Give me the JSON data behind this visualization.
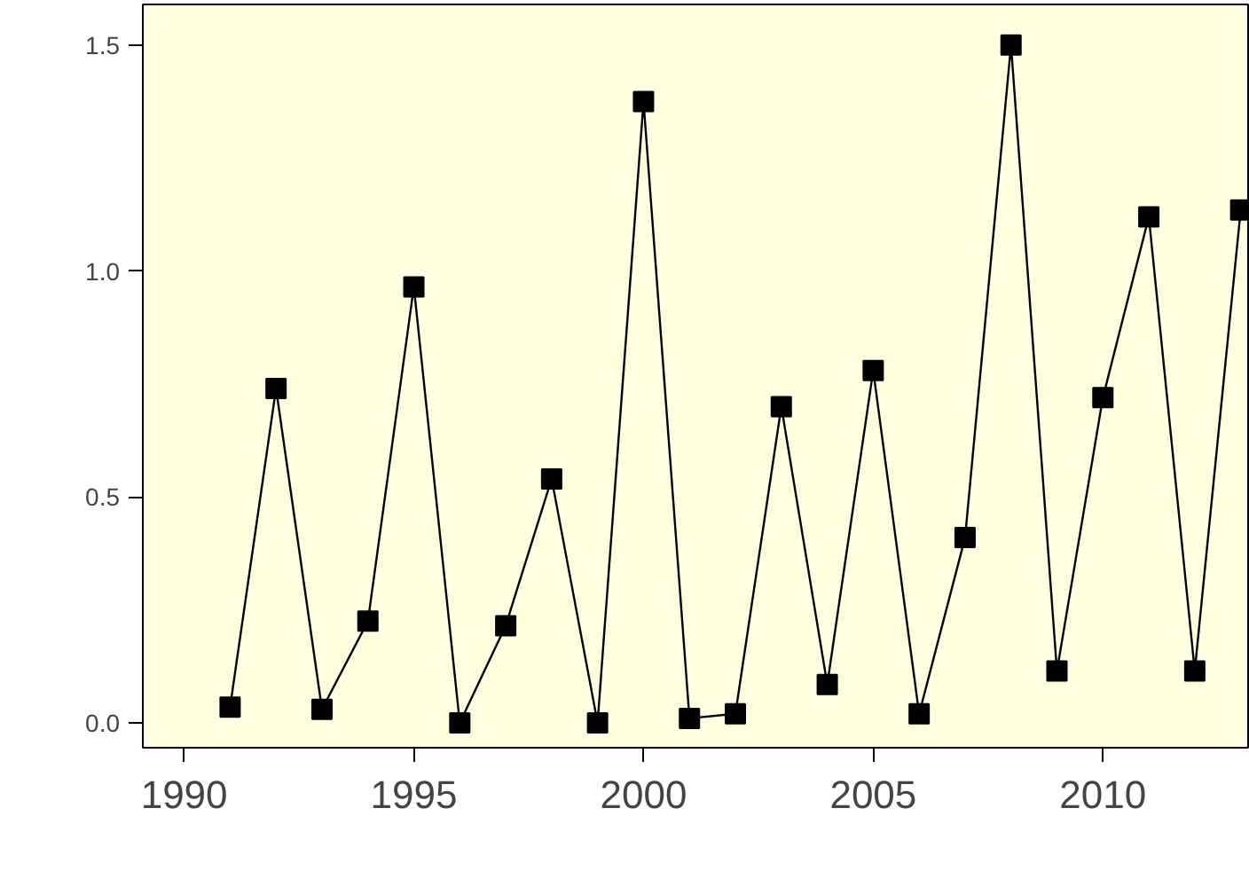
{
  "chart_data": {
    "type": "line",
    "marker": "square",
    "line_style": "solid",
    "grid": false,
    "x": [
      1991,
      1992,
      1993,
      1994,
      1995,
      1996,
      1997,
      1998,
      1999,
      2000,
      2001,
      2002,
      2003,
      2004,
      2005,
      2006,
      2007,
      2008,
      2009,
      2010,
      2011,
      2012,
      2013
    ],
    "series": [
      {
        "color": "#000000",
        "values": [
          0.035,
          0.74,
          0.03,
          0.225,
          0.965,
          0.0,
          0.215,
          0.54,
          0.0,
          1.375,
          0.01,
          0.02,
          0.7,
          0.085,
          0.78,
          0.02,
          0.41,
          1.5,
          0.115,
          0.72,
          1.12,
          0.115,
          1.135
        ]
      }
    ],
    "xlim": [
      1989.1,
      2013.2
    ],
    "ylim": [
      -0.055,
      1.59
    ],
    "xticks": [
      1990,
      1995,
      2000,
      2005,
      2010
    ],
    "yticks": [
      {
        "value": 0,
        "label": "0.0"
      },
      {
        "value": 0.5,
        "label": "0.5"
      },
      {
        "value": 1,
        "label": "1.0"
      },
      {
        "value": 1.5,
        "label": "1.5"
      }
    ]
  }
}
